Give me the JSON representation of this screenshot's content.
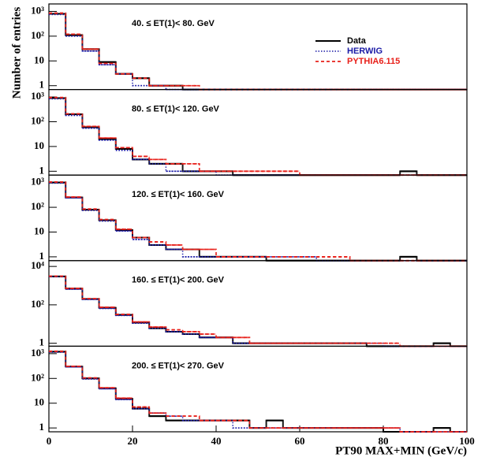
{
  "chart_data": [
    {
      "type": "histogram",
      "title": "40. ≤ ET(1)< 80. GeV",
      "ylabel": "Number of entries",
      "bins": [
        0,
        4,
        8,
        12,
        16,
        20,
        24,
        28,
        32,
        36,
        40,
        44,
        48,
        52,
        56,
        60,
        64,
        68,
        72,
        76,
        80,
        84,
        88,
        92,
        96,
        100
      ],
      "xlim": [
        0,
        100
      ],
      "ylim": [
        0.7,
        2000
      ],
      "log_y": true,
      "yticks": [
        1,
        10,
        {
          "value": 100,
          "label": "10²"
        },
        {
          "value": 1000,
          "label": "10³"
        }
      ],
      "legend": "upper right",
      "series": [
        {
          "name": "Data",
          "color": "#000000",
          "values": [
            800,
            110,
            30,
            9,
            3,
            2,
            1,
            1,
            0,
            0,
            0,
            0,
            0,
            0,
            0,
            0,
            0,
            0,
            0,
            0,
            0,
            0,
            0,
            0,
            0
          ]
        },
        {
          "name": "HERWIG",
          "color": "#1a1aa6",
          "values": [
            750,
            100,
            25,
            7,
            3,
            1,
            1,
            0,
            0,
            0,
            0,
            0,
            0,
            0,
            0,
            0,
            0,
            0,
            0,
            0,
            0,
            0,
            0,
            0,
            0
          ]
        },
        {
          "name": "PYTHIA6.115",
          "color": "#e8201a",
          "values": [
            850,
            120,
            30,
            8,
            3,
            2,
            1,
            1,
            1,
            0,
            0,
            0,
            0,
            0,
            0,
            0,
            0,
            0,
            0,
            0,
            0,
            0,
            0,
            0,
            0
          ]
        }
      ]
    },
    {
      "type": "histogram",
      "title": "80. ≤ ET(1)< 120. GeV",
      "bins": [
        0,
        4,
        8,
        12,
        16,
        20,
        24,
        28,
        32,
        36,
        40,
        44,
        48,
        52,
        56,
        60,
        64,
        68,
        72,
        76,
        80,
        84,
        88,
        92,
        96,
        100
      ],
      "xlim": [
        0,
        100
      ],
      "ylim": [
        0.7,
        2000
      ],
      "log_y": true,
      "yticks": [
        1,
        10,
        {
          "value": 100,
          "label": "10²"
        },
        {
          "value": 1000,
          "label": "10³"
        }
      ],
      "series": [
        {
          "values": [
            900,
            200,
            60,
            20,
            8,
            3,
            2,
            2,
            1,
            1,
            1,
            0,
            0,
            0,
            0,
            0,
            0,
            0,
            0,
            0,
            0,
            1,
            0,
            0,
            0
          ]
        },
        {
          "values": [
            850,
            180,
            55,
            18,
            7,
            3,
            2,
            1,
            1,
            1,
            0,
            0,
            0,
            0,
            0,
            0,
            0,
            0,
            0,
            0,
            0,
            0,
            0,
            0,
            0
          ]
        },
        {
          "values": [
            950,
            210,
            65,
            22,
            9,
            4,
            3,
            2,
            2,
            1,
            1,
            1,
            1,
            1,
            1,
            0,
            0,
            0,
            0,
            0,
            0,
            0,
            0,
            0,
            0
          ]
        }
      ]
    },
    {
      "type": "histogram",
      "title": "120. ≤ ET(1)< 160. GeV",
      "bins": [
        0,
        4,
        8,
        12,
        16,
        20,
        24,
        28,
        32,
        36,
        40,
        44,
        48,
        52,
        56,
        60,
        64,
        68,
        72,
        76,
        80,
        84,
        88,
        92,
        96,
        100
      ],
      "xlim": [
        0,
        100
      ],
      "ylim": [
        0.7,
        2000
      ],
      "log_y": true,
      "yticks": [
        1,
        10,
        {
          "value": 100,
          "label": "10²"
        },
        {
          "value": 1000,
          "label": "10³"
        }
      ],
      "series": [
        {
          "values": [
            1000,
            250,
            80,
            30,
            12,
            6,
            3,
            2,
            2,
            1,
            1,
            1,
            1,
            0,
            0,
            0,
            0,
            0,
            0,
            0,
            0,
            1,
            0,
            0,
            0
          ]
        },
        {
          "values": [
            950,
            240,
            75,
            28,
            11,
            5,
            3,
            2,
            1,
            1,
            1,
            1,
            1,
            1,
            1,
            1,
            0,
            0,
            0,
            0,
            0,
            0,
            0,
            0,
            0
          ]
        },
        {
          "values": [
            1050,
            260,
            85,
            32,
            13,
            6,
            4,
            3,
            2,
            2,
            1,
            1,
            1,
            1,
            1,
            1,
            1,
            1,
            0,
            0,
            0,
            0,
            0,
            0,
            0
          ]
        }
      ]
    },
    {
      "type": "histogram",
      "title": "160. ≤ ET(1)< 200. GeV",
      "bins": [
        0,
        4,
        8,
        12,
        16,
        20,
        24,
        28,
        32,
        36,
        40,
        44,
        48,
        52,
        56,
        60,
        64,
        68,
        72,
        76,
        80,
        84,
        88,
        92,
        96,
        100
      ],
      "xlim": [
        0,
        100
      ],
      "ylim": [
        0.7,
        20000
      ],
      "log_y": true,
      "yticks": [
        1,
        {
          "value": 100,
          "label": "10²"
        },
        {
          "value": 10000,
          "label": "10⁴"
        }
      ],
      "series": [
        {
          "values": [
            3000,
            700,
            200,
            70,
            30,
            12,
            6,
            4,
            3,
            2,
            2,
            1,
            1,
            1,
            1,
            1,
            1,
            1,
            1,
            0,
            0,
            0,
            0,
            1,
            0
          ]
        },
        {
          "values": [
            2900,
            650,
            190,
            65,
            28,
            11,
            6,
            4,
            3,
            2,
            2,
            1,
            1,
            1,
            1,
            1,
            1,
            1,
            1,
            1,
            0,
            0,
            0,
            0,
            0
          ]
        },
        {
          "values": [
            3100,
            720,
            210,
            75,
            32,
            13,
            7,
            5,
            4,
            3,
            2,
            2,
            1,
            1,
            1,
            1,
            1,
            1,
            1,
            1,
            1,
            0,
            0,
            0,
            0
          ]
        }
      ]
    },
    {
      "type": "histogram",
      "title": "200. ≤ ET(1)< 270. GeV",
      "xlabel": "PT90 MAX+MIN (GeV/c)",
      "bins": [
        0,
        4,
        8,
        12,
        16,
        20,
        24,
        28,
        32,
        36,
        40,
        44,
        48,
        52,
        56,
        60,
        64,
        68,
        72,
        76,
        80,
        84,
        88,
        92,
        96,
        100
      ],
      "xlim": [
        0,
        100
      ],
      "ylim": [
        0.7,
        2000
      ],
      "log_y": true,
      "xticks": [
        0,
        20,
        40,
        60,
        80,
        100
      ],
      "yticks": [
        1,
        10,
        {
          "value": 100,
          "label": "10²"
        },
        {
          "value": 1000,
          "label": "10³"
        }
      ],
      "series": [
        {
          "values": [
            1200,
            300,
            100,
            40,
            15,
            6,
            3,
            2,
            2,
            2,
            2,
            2,
            1,
            2,
            1,
            1,
            1,
            1,
            1,
            1,
            0,
            0,
            0,
            1,
            0
          ]
        },
        {
          "values": [
            1150,
            290,
            95,
            38,
            14,
            6,
            4,
            3,
            2,
            2,
            2,
            1,
            1,
            1,
            1,
            1,
            1,
            1,
            1,
            1,
            1,
            0,
            0,
            0,
            0
          ]
        },
        {
          "values": [
            1250,
            310,
            105,
            42,
            16,
            7,
            4,
            3,
            3,
            2,
            2,
            2,
            1,
            1,
            1,
            1,
            1,
            1,
            1,
            1,
            1,
            0,
            0,
            0,
            0
          ]
        }
      ]
    }
  ]
}
